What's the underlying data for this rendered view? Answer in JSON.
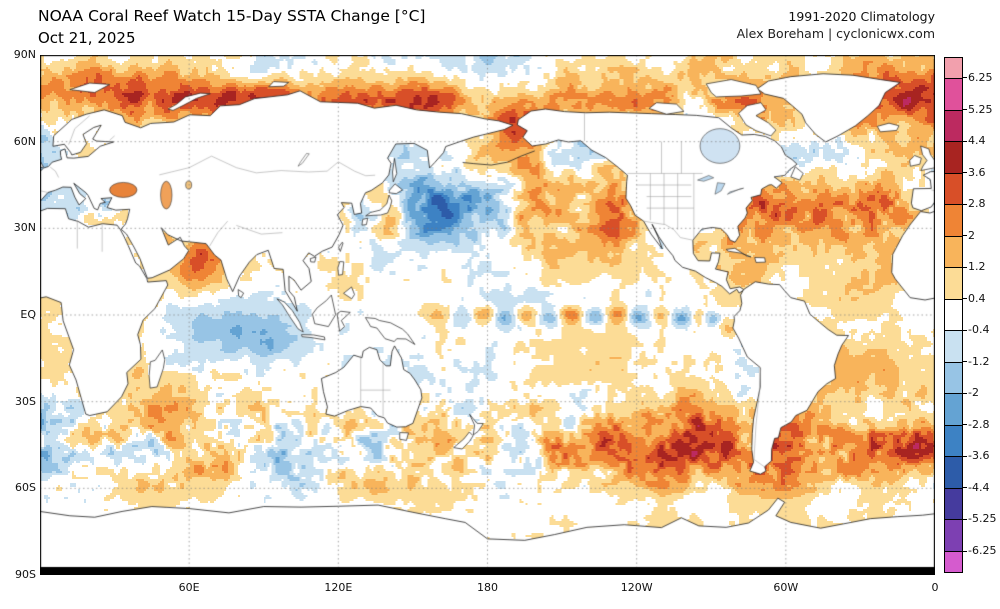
{
  "header": {
    "title": "NOAA Coral Reef Watch 15-Day SSTA Change [°C]",
    "date": "Oct 21, 2025",
    "climatology": "1991-2020 Climatology",
    "credit": "Alex Boreham | cyclonicwx.com"
  },
  "map": {
    "lat_labels": [
      "90N",
      "60N",
      "30N",
      "EQ",
      "30S",
      "60S",
      "90S"
    ],
    "lat_values": [
      90,
      60,
      30,
      0,
      -30,
      -60,
      -90
    ],
    "lon_labels": [
      "60E",
      "120E",
      "180",
      "120W",
      "60W",
      "0"
    ],
    "lon_values_east": [
      60,
      120,
      180,
      240,
      300,
      360
    ]
  },
  "colorbar": {
    "tick_labels": [
      "6.25",
      "5.25",
      "4.4",
      "3.6",
      "2.8",
      "2",
      "1.2",
      "0.4",
      "-0.4",
      "-1.2",
      "-2",
      "-2.8",
      "-3.6",
      "-4.4",
      "-5.25",
      "-6.25"
    ],
    "tick_values": [
      6.25,
      5.25,
      4.4,
      3.6,
      2.8,
      2,
      1.2,
      0.4,
      -0.4,
      -1.2,
      -2,
      -2.8,
      -3.6,
      -4.4,
      -5.25,
      -6.25
    ],
    "segment_colors_top_to_bottom": [
      "#f2a0ad",
      "#e0519b",
      "#bc2a60",
      "#a82421",
      "#d84f28",
      "#ef8435",
      "#f8b45b",
      "#fcdc96",
      "#ffffff",
      "#c9e1f1",
      "#97c4e5",
      "#64a3d3",
      "#3d82c4",
      "#2d5ca9",
      "#453b9e",
      "#7d40b2",
      "#d55bce"
    ]
  },
  "chart_data": {
    "type": "heatmap",
    "title": "NOAA Coral Reef Watch 15-Day SSTA Change [°C]",
    "date": "Oct 21, 2025",
    "climatology_baseline": "1991-2020",
    "units": "°C",
    "projection": "equirectangular, Pacific-centered",
    "lon_extent_deg_east": [
      0,
      360
    ],
    "lat_extent": [
      -90,
      90
    ],
    "color_levels": [
      -6.25,
      -5.25,
      -4.4,
      -3.6,
      -2.8,
      -2,
      -1.2,
      -0.4,
      0.4,
      1.2,
      2,
      2.8,
      3.6,
      4.4,
      5.25,
      6.25
    ],
    "notable_features": [
      "Broad cool anomaly (-1 to -3 °C) across the central North Pacific",
      "Alternating warm/cool tropical-instability-wave pattern along the equatorial Pacific",
      "Warm anomalies (+0.4 to +2 °C) ringing the Arctic coastline",
      "Cool anomalies across the central Indian Ocean; warm anomaly off the Arabian Peninsula",
      "Mixed eddy-scale warm/cool speckling through the Southern Ocean (30S-60S)",
      "Warm anomalies across the subtropical North Atlantic and Gulf Stream region"
    ]
  }
}
